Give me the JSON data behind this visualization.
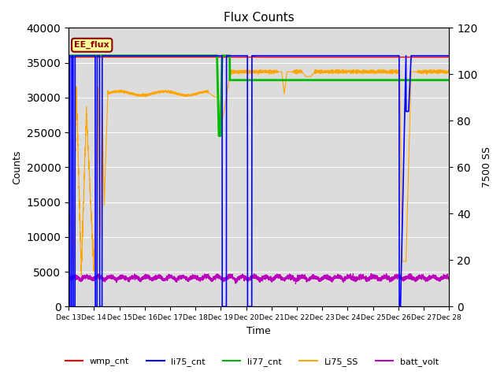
{
  "title": "Flux Counts",
  "xlabel": "Time",
  "ylabel_left": "Counts",
  "ylabel_right": "7500 SS",
  "ylim_left": [
    0,
    40000
  ],
  "ylim_right": [
    0,
    120
  ],
  "annotation_text": "EE_flux",
  "annotation_color": "#8B0000",
  "annotation_bg": "#FFFF99",
  "bg_color": "#DCDCDC",
  "colors": {
    "wmp_cnt": "#FF0000",
    "li75_cnt": "#0000FF",
    "li77_cnt": "#00BB00",
    "Li75_SS": "#FFA500",
    "batt_volt": "#BB00BB"
  },
  "x_tick_labels": [
    "Dec 13",
    "Dec 14",
    "Dec 15",
    "Dec 16",
    "Dec 17",
    "Dec 18",
    "Dec 19",
    "Dec 20",
    "Dec 21",
    "Dec 22",
    "Dec 23",
    "Dec 24",
    "Dec 25",
    "Dec 26",
    "Dec 27",
    "Dec 28"
  ],
  "legend_labels": [
    "wmp_cnt",
    "li75_cnt",
    "li77_cnt",
    "Li75_SS",
    "batt_volt"
  ]
}
